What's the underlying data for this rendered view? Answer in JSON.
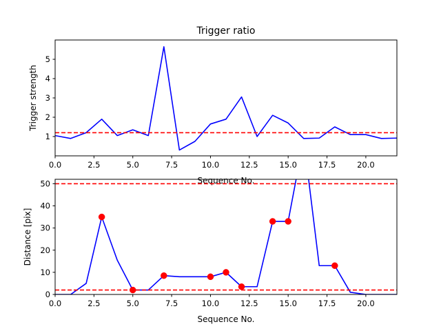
{
  "chart_data": [
    {
      "type": "line",
      "title": "Trigger ratio",
      "xlabel": "Sequence No.",
      "ylabel": "Trigger strength",
      "xlim": [
        0,
        22
      ],
      "ylim": [
        0,
        6
      ],
      "xticks": [
        0,
        2.5,
        5,
        7.5,
        10,
        12.5,
        15,
        17.5,
        20
      ],
      "xtick_labels": [
        "0.0",
        "2.5",
        "5.0",
        "7.5",
        "10.0",
        "12.5",
        "15.0",
        "17.5",
        "20.0"
      ],
      "yticks": [
        1,
        2,
        3,
        4,
        5
      ],
      "ytick_labels": [
        "1",
        "2",
        "3",
        "4",
        "5"
      ],
      "grid": false,
      "series": [
        {
          "color": "#0000ff",
          "x": [
            0,
            1,
            2,
            3,
            4,
            5,
            6,
            7,
            8,
            9,
            10,
            11,
            12,
            13,
            14,
            15,
            16,
            17,
            18,
            19,
            20,
            21,
            22
          ],
          "y": [
            1.05,
            0.9,
            1.2,
            1.9,
            1.05,
            1.35,
            1.05,
            5.65,
            0.3,
            0.75,
            1.65,
            1.9,
            3.05,
            1.0,
            2.1,
            1.7,
            0.9,
            0.92,
            1.5,
            1.1,
            1.1,
            0.9,
            0.92
          ]
        }
      ],
      "hlines": [
        {
          "y": 1.2,
          "color": "#ff0000",
          "style": "dashed"
        }
      ]
    },
    {
      "type": "line",
      "title": "",
      "xlabel": "Sequence No.",
      "ylabel": "Distance [pix]",
      "xlim": [
        0,
        22
      ],
      "ylim": [
        0,
        52
      ],
      "xticks": [
        0,
        2.5,
        5,
        7.5,
        10,
        12.5,
        15,
        17.5,
        20
      ],
      "xtick_labels": [
        "0.0",
        "2.5",
        "5.0",
        "7.5",
        "10.0",
        "12.5",
        "15.0",
        "17.5",
        "20.0"
      ],
      "yticks": [
        0,
        10,
        20,
        30,
        40,
        50
      ],
      "ytick_labels": [
        "0",
        "10",
        "20",
        "30",
        "40",
        "50"
      ],
      "grid": false,
      "series": [
        {
          "color": "#0000ff",
          "x": [
            0,
            1,
            2,
            3,
            4,
            5,
            6,
            7,
            8,
            9,
            10,
            11,
            12,
            13,
            14,
            15,
            16,
            17,
            18,
            19,
            20,
            21,
            22
          ],
          "y": [
            0,
            0,
            5,
            35,
            15.5,
            2,
            2,
            8.5,
            8,
            8,
            8,
            10,
            3.5,
            3.5,
            33,
            33,
            70,
            13,
            13,
            1,
            0,
            0,
            0
          ]
        },
        {
          "color": "#ff0000",
          "marker": "circle",
          "x": [
            3,
            5,
            7,
            10,
            11,
            12,
            14,
            15,
            18
          ],
          "y": [
            35,
            2,
            8.5,
            8,
            10,
            3.5,
            33,
            33,
            13
          ]
        }
      ],
      "hlines": [
        {
          "y": 50,
          "color": "#ff0000",
          "style": "dashed"
        },
        {
          "y": 2,
          "color": "#ff0000",
          "style": "dashed"
        }
      ]
    }
  ]
}
